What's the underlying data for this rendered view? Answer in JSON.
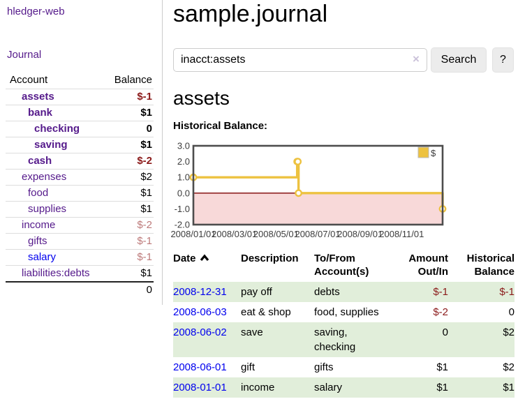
{
  "sidebar": {
    "brand": "hledger-web",
    "journal_link": "Journal",
    "table": {
      "headers": {
        "account": "Account",
        "balance": "Balance"
      },
      "accounts": [
        {
          "name": "assets",
          "balance": "$-1"
        },
        {
          "name": "bank",
          "balance": "$1"
        },
        {
          "name": "checking",
          "balance": "0"
        },
        {
          "name": "saving",
          "balance": "$1"
        },
        {
          "name": "cash",
          "balance": "$-2"
        },
        {
          "name": "expenses",
          "balance": "$2"
        },
        {
          "name": "food",
          "balance": "$1"
        },
        {
          "name": "supplies",
          "balance": "$1"
        },
        {
          "name": "income",
          "balance": "$-2"
        },
        {
          "name": "gifts",
          "balance": "$-1"
        },
        {
          "name": "salary",
          "balance": "$-1"
        },
        {
          "name": "liabilities:debts",
          "balance": "$1"
        }
      ],
      "total": "0"
    }
  },
  "header": {
    "title": "sample.journal"
  },
  "search": {
    "value": "inacct:assets",
    "clear_icon": "×",
    "button_label": "Search",
    "help_label": "?"
  },
  "account_page": {
    "heading": "assets",
    "chart_label": "Historical Balance:"
  },
  "chart_data": {
    "type": "line",
    "title": "Historical Balance",
    "step": true,
    "xlim_days": [
      0,
      365
    ],
    "ylim": [
      -2,
      3
    ],
    "yticks": [
      "3.0",
      "2.0",
      "1.0",
      "0.0",
      "-1.0",
      "-2.0"
    ],
    "ytick_values": [
      3,
      2,
      1,
      0,
      -1,
      -2
    ],
    "xticks": [
      {
        "day": 0,
        "label": "2008/01/01"
      },
      {
        "day": 60,
        "label": "2008/03/01"
      },
      {
        "day": 121,
        "label": "2008/05/01"
      },
      {
        "day": 182,
        "label": "2008/07/01"
      },
      {
        "day": 244,
        "label": "2008/09/01"
      },
      {
        "day": 305,
        "label": "2008/11/01"
      }
    ],
    "series": [
      {
        "name": "$",
        "color": "#edc240",
        "points": [
          {
            "date": "2008-01-01",
            "day": 0,
            "value": 1
          },
          {
            "date": "2008-06-01",
            "day": 152,
            "value": 2
          },
          {
            "date": "2008-06-02",
            "day": 153,
            "value": 2
          },
          {
            "date": "2008-06-03",
            "day": 154,
            "value": 0
          },
          {
            "date": "2008-12-31",
            "day": 365,
            "value": -1
          }
        ]
      }
    ],
    "legend": {
      "position": "top-right",
      "label": "$"
    },
    "colors": {
      "negative_region": "#f8d9d9",
      "zero_line": "#7d0000",
      "grid": "#d9d9d9",
      "border": "#4d4d4d"
    }
  },
  "register": {
    "columns": [
      {
        "l1": "Date",
        "l2": ""
      },
      {
        "l1": "Description",
        "l2": ""
      },
      {
        "l1": "To/From",
        "l2": "Account(s)"
      },
      {
        "l1": "Amount",
        "l2": "Out/In"
      },
      {
        "l1": "Historical",
        "l2": "Balance"
      }
    ],
    "rows": [
      {
        "date": "2008-12-31",
        "description": "pay off",
        "accounts": "debts",
        "amount": "$-1",
        "balance": "$-1"
      },
      {
        "date": "2008-06-03",
        "description": "eat & shop",
        "accounts": "food, supplies",
        "amount": "$-2",
        "balance": "0"
      },
      {
        "date": "2008-06-02",
        "description": "save",
        "accounts": "saving,\nchecking",
        "amount": "0",
        "balance": "$2"
      },
      {
        "date": "2008-06-01",
        "description": "gift",
        "accounts": "gifts",
        "amount": "$1",
        "balance": "$2"
      },
      {
        "date": "2008-01-01",
        "description": "income",
        "accounts": "salary",
        "amount": "$1",
        "balance": "$1"
      }
    ]
  }
}
